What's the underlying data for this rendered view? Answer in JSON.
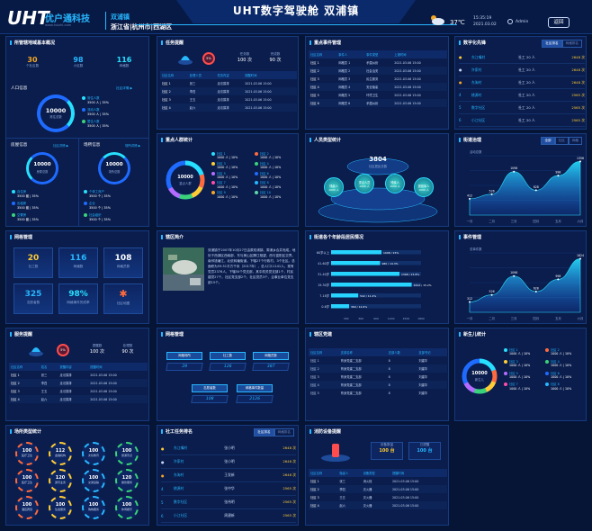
{
  "header": {
    "logo_mark": "UHT",
    "logo_text": "优户通科技",
    "logo_url": "www.huizhi.com",
    "location_town": "双浦镇",
    "location_path": "浙江省|杭州市|西湖区",
    "title": "UHT数字驾驶舱   双浦镇",
    "temperature": "37℃",
    "time": "15:35:19",
    "date": "2021.03.02",
    "user": "Admin",
    "back_label": "返回"
  },
  "colors": {
    "accent": "#27b7ff",
    "bg": "#061436",
    "panel": "#0a1d4d",
    "orange": "#f5a623",
    "gold": "#ffcc33"
  },
  "p1": {
    "title": "所管辖地域基本概况",
    "stats": [
      {
        "value": "30",
        "label": "个社区数"
      },
      {
        "value": "98",
        "label": "小区数"
      },
      {
        "value": "116",
        "label": "网格数"
      }
    ],
    "pop_title": "人口信息",
    "pop_link": "社区详情 ▶",
    "pop_ring": {
      "value": "10000",
      "label": "常住总数"
    },
    "pop_legend": [
      {
        "name": "常住人数",
        "val": "3500 人 | 35%"
      },
      {
        "name": "流动人数",
        "val": "3500 人 | 35%"
      },
      {
        "name": "暂住人数",
        "val": "3500 人 | 35%"
      }
    ],
    "house_title": "房屋信息",
    "house_link": "社区详情 ▶",
    "house_ring": {
      "value": "10000",
      "label": "房屋总数"
    },
    "house_legend": [
      {
        "name": "自住房",
        "val": "3500 套 | 35%"
      },
      {
        "name": "出租房",
        "val": "3500 套 | 35%"
      },
      {
        "name": "空置房",
        "val": "3500 套 | 35%"
      }
    ],
    "place_title": "场所信息",
    "place_link": "场所详情 ▶",
    "place_ring": {
      "value": "10000",
      "label": "场所总数"
    },
    "place_legend": [
      {
        "name": "个体工商户",
        "val": "3500 个 | 35%"
      },
      {
        "name": "企业",
        "val": "3500 个 | 35%"
      },
      {
        "name": "社会组织",
        "val": "3500 个 | 35%"
      }
    ]
  },
  "p2": {
    "title": "任务提醒",
    "badge": "5%",
    "stat1": {
      "label": "任务数",
      "value": "100 次"
    },
    "stat2": {
      "label": "完成数",
      "value": "90 次"
    },
    "cols": [
      "社区名称",
      "处理人员",
      "任务内容",
      "提醒时间"
    ],
    "rows": [
      [
        "社区 1",
        "张三",
        "走访摸排",
        "2021.03.06 15:00"
      ],
      [
        "社区 2",
        "李四",
        "走访摸排",
        "2021.03.06 15:00"
      ],
      [
        "社区 3",
        "王五",
        "走访摸排",
        "2021.03.06 15:00"
      ],
      [
        "社区 4",
        "赵六",
        "走访摸排",
        "2021.03.06 15:00"
      ]
    ]
  },
  "p3": {
    "title": "重点事件管理",
    "cols": [
      "社区名称",
      "事件人",
      "事件类型",
      "上报时间"
    ],
    "rows": [
      [
        "社区 1",
        "网格员 1",
        "矛盾纠纷",
        "2021.03.06 15:00"
      ],
      [
        "社区 2",
        "网格员 2",
        "社会治安",
        "2021.03.06 15:00"
      ],
      [
        "社区 3",
        "网格员 3",
        "民生服务",
        "2021.03.06 15:00"
      ],
      [
        "社区 4",
        "网格员 4",
        "安全隐患",
        "2021.03.06 15:00"
      ],
      [
        "社区 5",
        "网格员 5",
        "环境卫生",
        "2021.03.06 15:00"
      ],
      [
        "社区 6",
        "网格员 6",
        "矛盾纠纷",
        "2021.03.06 15:00"
      ]
    ]
  },
  "p4": {
    "title": "数字化先锋",
    "tabs": [
      "社区排名",
      "网格排名"
    ],
    "rows": [
      [
        "东江嘴村",
        "社工 20 人",
        "2648 次"
      ],
      [
        "许家村",
        "社工 20 人",
        "2648 次"
      ],
      [
        "东淘村",
        "社工 20 人",
        "2648 次"
      ],
      [
        "桃源村",
        "社工 20 人",
        "2565 次"
      ],
      [
        "数字社区",
        "社工 20 人",
        "2565 次"
      ],
      [
        "小江社区",
        "社工 20 人",
        "2565 次"
      ]
    ]
  },
  "p5": {
    "title": "重点人群统计",
    "ring": {
      "value": "10000",
      "label": "重点人群"
    },
    "legend": [
      {
        "name": "社区 1",
        "val": "1000 人 | 10%"
      },
      {
        "name": "社区 2",
        "val": "1000 人 | 10%"
      },
      {
        "name": "社区 3",
        "val": "1000 人 | 10%"
      },
      {
        "name": "社区 4",
        "val": "1000 人 | 10%"
      },
      {
        "name": "社区 5",
        "val": "1000 人 | 10%"
      },
      {
        "name": "社区 6",
        "val": "1000 人 | 10%"
      },
      {
        "name": "社区 7",
        "val": "1000 人 | 10%"
      },
      {
        "name": "社区 8",
        "val": "1000 人 | 10%"
      },
      {
        "name": "社区 9",
        "val": "1000 人 | 10%"
      },
      {
        "name": "社区 10",
        "val": "1000 人 | 10%"
      }
    ]
  },
  "p6": {
    "title": "人员类型统计",
    "total": "3804",
    "total_label": "社区居民总数",
    "types": [
      "残疾人",
      "重点人员",
      "残疾人",
      "退役军人"
    ],
    "sub": "1000 人"
  },
  "p7": {
    "title": "街道治理",
    "tabs": [
      "全部",
      "社区",
      "网格"
    ],
    "chart_data": {
      "type": "area",
      "x": [
        "一月",
        "二月",
        "三月",
        "四月",
        "五月",
        "六月"
      ],
      "values": [
        412,
        526,
        1098,
        628,
        998,
        1356
      ],
      "labels": [
        "412",
        "526",
        "1098",
        "628",
        "998",
        "1356"
      ],
      "ylabel": "活动总数",
      "ylim": [
        0,
        1500
      ]
    }
  },
  "p8": {
    "title": "网格管理",
    "items": [
      {
        "value": "20",
        "label": "社工数"
      },
      {
        "value": "116",
        "label": "网格数"
      },
      {
        "value": "108",
        "label": "网格员数"
      },
      {
        "value": "325",
        "label": "志愿者数"
      },
      {
        "value": "98%",
        "label": "网格事件完成率"
      },
      {
        "value": "",
        "label": "社区地图"
      }
    ]
  },
  "p9": {
    "title": "辖区简介",
    "text": "双浦镇于2007年10月27日由原双浦镇、周浦乡合并而成，地处于西湖区西南部，东与美山区隔江相望，西与富阳区交界，南邻钱塘江，北依转塘街道。下辖27个行政村，3个社区。总面积为59.51平方千米（2017年），总人口11141人。现有党员2376人，下辖50个党支部，其中机关党支部1个，村民建党27个。社区党支部2个，社区党员3个，企事业单位党支部15个。"
  },
  "p10": {
    "title": "街道各个年龄段居民情况",
    "chart_data": {
      "type": "bar",
      "orientation": "horizontal",
      "categories": [
        "60岁以上",
        "41-60岁",
        "31-40岁",
        "19-30岁",
        "7-18岁",
        "0-6岁"
      ],
      "values": [
        1008,
        980,
        1368,
        1612,
        542,
        360
      ],
      "labels": [
        "1008 / 15%",
        "980 / 14.3%",
        "1368 / 15.8%",
        "1612 / 15.2%",
        "542 / 11.4%",
        "360 / 12.6%"
      ],
      "xticks": [
        "300",
        "600",
        "900",
        "1200",
        "1500",
        "1800"
      ],
      "xlim": [
        0,
        1800
      ]
    }
  },
  "p11": {
    "title": "事件管理",
    "chart_data": {
      "type": "area",
      "x": [
        "一月",
        "二月",
        "三月",
        "四月",
        "五月",
        "六月"
      ],
      "values": [
        312,
        526,
        1098,
        628,
        998,
        1624
      ],
      "labels": [
        "312",
        "526",
        "1098",
        "628",
        "998",
        "1624"
      ],
      "ylabel": "总事件数",
      "ylim": [
        0,
        1800
      ]
    }
  },
  "p12": {
    "title": "服务提醒",
    "badge": "5%",
    "stat1": {
      "label": "提醒数",
      "value": "100 次"
    },
    "stat2": {
      "label": "处理数",
      "value": "90 次"
    },
    "cols": [
      "社区名称",
      "姓名",
      "提醒内容",
      "提醒时间"
    ],
    "rows": [
      [
        "社区 1",
        "张三",
        "走访摸排",
        "2021.03.06 15:00"
      ],
      [
        "社区 2",
        "李四",
        "走访摸排",
        "2021.03.06 15:00"
      ],
      [
        "社区 3",
        "王五",
        "走访摸排",
        "2021.03.06 15:00"
      ],
      [
        "社区 4",
        "赵六",
        "走访摸排",
        "2021.03.06 15:00"
      ]
    ]
  },
  "p13": {
    "title": "网格管理",
    "items": [
      {
        "label": "网格场所",
        "value": "29"
      },
      {
        "label": "社工数",
        "value": "126"
      },
      {
        "label": "网格员数",
        "value": "387"
      },
      {
        "label": "志愿者数",
        "value": "108"
      },
      {
        "label": "网格事件数量",
        "value": "2126"
      }
    ]
  },
  "p14": {
    "title": "辖区党建",
    "cols": [
      "社区名称",
      "支部名称",
      "支部人数",
      "支部书记"
    ],
    "rows": [
      [
        "社区 1",
        "育身党建二支部",
        "8",
        "刘建华"
      ],
      [
        "社区 2",
        "育身党建二支部",
        "8",
        "刘建华"
      ],
      [
        "社区 3",
        "育身党建二支部",
        "8",
        "刘建华"
      ],
      [
        "社区 4",
        "育身党建二支部",
        "8",
        "刘建华"
      ],
      [
        "社区 5",
        "育身党建二支部",
        "8",
        "刘建华"
      ]
    ]
  },
  "p15": {
    "title": "新生儿统计",
    "ring": {
      "value": "10000",
      "label": "新生儿"
    },
    "legend": [
      {
        "name": "社区 1",
        "val": "1000 人 | 10%"
      },
      {
        "name": "社区 2",
        "val": "1000 人 | 10%"
      },
      {
        "name": "社区 3",
        "val": "1000 人 | 10%"
      },
      {
        "name": "社区 4",
        "val": "1000 人 | 10%"
      },
      {
        "name": "社区 5",
        "val": "1000 人 | 10%"
      },
      {
        "name": "社区 6",
        "val": "1000 人 | 10%"
      },
      {
        "name": "社区 7",
        "val": "1000 人 | 10%"
      },
      {
        "name": "社区 8",
        "val": "1000 人 | 10%"
      }
    ]
  },
  "p16": {
    "title": "场所类型统计",
    "items": [
      {
        "v": "100",
        "l": "医疗卫生"
      },
      {
        "v": "112",
        "l": "金融机构"
      },
      {
        "v": "100",
        "l": "文化教育"
      },
      {
        "v": "100",
        "l": "旅游景点"
      },
      {
        "v": "100",
        "l": "医疗卫生"
      },
      {
        "v": "120",
        "l": "通讯业务"
      },
      {
        "v": "100",
        "l": "交通运输"
      },
      {
        "v": "120",
        "l": "餐饮服务"
      },
      {
        "v": "100",
        "l": "酒店宾馆"
      },
      {
        "v": "100",
        "l": "住宿服务"
      },
      {
        "v": "100",
        "l": "购物服务"
      },
      {
        "v": "100",
        "l": "休闲娱乐"
      }
    ]
  },
  "p17": {
    "title": "社工任务排名",
    "tabs": [
      "社区排名",
      "网格排名"
    ],
    "rows": [
      [
        "东江嘴村",
        "张小明",
        "2648 次"
      ],
      [
        "许家村",
        "张小明",
        "2648 次"
      ],
      [
        "东淘村",
        "王发新",
        "2648 次"
      ],
      [
        "桃源村",
        "张中华",
        "2565 次"
      ],
      [
        "数字社区",
        "张伟明",
        "2565 次"
      ],
      [
        "小江社区",
        "周建新",
        "2565 次"
      ]
    ]
  },
  "p18": {
    "title": "消防设备提醒",
    "stat1": {
      "label": "设备数量",
      "value": "100 台"
    },
    "stat2": {
      "label": "已提醒",
      "value": "100 台"
    },
    "cols": [
      "社区名称",
      "隐患人",
      "设备类型",
      "提醒时间"
    ],
    "rows": [
      [
        "社区 1",
        "张三",
        "消火栓",
        "2021.03.06 15:00"
      ],
      [
        "社区 2",
        "李四",
        "灭火器",
        "2021.03.06 15:00"
      ],
      [
        "社区 3",
        "王五",
        "灭火器",
        "2021.03.06 15:00"
      ],
      [
        "社区 4",
        "赵六",
        "灭火器",
        "2021.03.06 15:00"
      ]
    ]
  }
}
